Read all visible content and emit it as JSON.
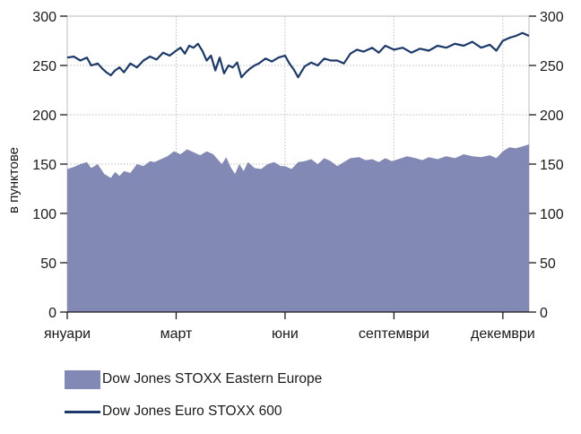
{
  "chart_data": {
    "type": "area",
    "ylabel": "в пунктове",
    "ylim": [
      0,
      300
    ],
    "yticks": [
      "0",
      "50",
      "100",
      "150",
      "200",
      "250",
      "300"
    ],
    "x_tick_labels": [
      "януари",
      "март",
      "юни",
      "септември",
      "декември"
    ],
    "x_tick_positions": [
      0,
      2.5,
      5,
      7.5,
      10
    ],
    "xlim": [
      0,
      10.6
    ],
    "grid": true,
    "legend_position": "bottom-left",
    "series": [
      {
        "name": "Dow Jones STOXX Eastern Europe",
        "kind": "area",
        "color": "#8389b5",
        "x": [
          0,
          0.15,
          0.3,
          0.45,
          0.55,
          0.7,
          0.85,
          1.0,
          1.1,
          1.2,
          1.3,
          1.45,
          1.6,
          1.75,
          1.9,
          2.0,
          2.15,
          2.3,
          2.45,
          2.6,
          2.75,
          2.9,
          3.05,
          3.2,
          3.35,
          3.45,
          3.55,
          3.65,
          3.75,
          3.85,
          3.95,
          4.05,
          4.15,
          4.3,
          4.45,
          4.6,
          4.75,
          4.9,
          5.0,
          5.15,
          5.3,
          5.45,
          5.6,
          5.75,
          5.9,
          6.05,
          6.2,
          6.35,
          6.5,
          6.7,
          6.85,
          7.0,
          7.15,
          7.3,
          7.45,
          7.6,
          7.8,
          8.0,
          8.15,
          8.3,
          8.5,
          8.7,
          8.9,
          9.1,
          9.3,
          9.5,
          9.7,
          9.85,
          10.0,
          10.15,
          10.3,
          10.45,
          10.6
        ],
        "values": [
          145,
          147,
          150,
          152,
          146,
          150,
          140,
          136,
          142,
          138,
          143,
          141,
          150,
          148,
          153,
          152,
          155,
          158,
          163,
          160,
          165,
          162,
          159,
          163,
          160,
          155,
          150,
          157,
          147,
          140,
          150,
          143,
          152,
          146,
          145,
          150,
          152,
          148,
          148,
          145,
          152,
          153,
          155,
          150,
          156,
          153,
          148,
          152,
          156,
          157,
          154,
          155,
          152,
          156,
          153,
          155,
          158,
          156,
          154,
          157,
          155,
          158,
          156,
          160,
          158,
          157,
          159,
          156,
          163,
          167,
          166,
          168,
          170
        ]
      },
      {
        "name": "Dow Jones Euro STOXX 600",
        "kind": "line",
        "color": "#1b3a6b",
        "x": [
          0,
          0.15,
          0.3,
          0.45,
          0.55,
          0.7,
          0.8,
          0.9,
          1.0,
          1.1,
          1.2,
          1.3,
          1.45,
          1.6,
          1.75,
          1.9,
          2.05,
          2.2,
          2.35,
          2.5,
          2.6,
          2.7,
          2.8,
          2.9,
          3.0,
          3.1,
          3.2,
          3.3,
          3.4,
          3.5,
          3.6,
          3.7,
          3.8,
          3.9,
          4.0,
          4.1,
          4.2,
          4.3,
          4.4,
          4.55,
          4.7,
          4.85,
          5.0,
          5.1,
          5.2,
          5.3,
          5.45,
          5.6,
          5.75,
          5.9,
          6.05,
          6.2,
          6.35,
          6.5,
          6.65,
          6.8,
          7.0,
          7.15,
          7.3,
          7.5,
          7.7,
          7.9,
          8.1,
          8.3,
          8.5,
          8.7,
          8.9,
          9.1,
          9.3,
          9.5,
          9.7,
          9.85,
          10.0,
          10.15,
          10.3,
          10.45,
          10.6
        ],
        "values": [
          258,
          259,
          255,
          258,
          250,
          252,
          247,
          243,
          240,
          245,
          248,
          243,
          252,
          248,
          255,
          259,
          256,
          263,
          260,
          265,
          268,
          262,
          270,
          268,
          272,
          265,
          255,
          260,
          245,
          258,
          242,
          250,
          248,
          253,
          238,
          243,
          247,
          250,
          252,
          257,
          254,
          258,
          260,
          252,
          246,
          238,
          249,
          253,
          250,
          257,
          255,
          255,
          252,
          262,
          266,
          264,
          268,
          263,
          270,
          266,
          268,
          263,
          267,
          265,
          270,
          268,
          272,
          270,
          274,
          268,
          271,
          265,
          275,
          278,
          280,
          283,
          280
        ]
      }
    ]
  },
  "colors": {
    "grid": "#bdbdbd",
    "axis": "#1a1a1a"
  }
}
